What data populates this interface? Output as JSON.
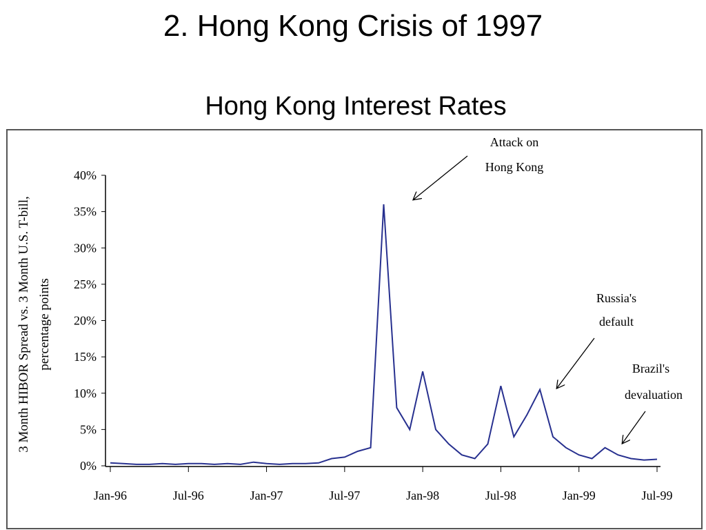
{
  "slide_title": "2. Hong Kong Crisis of 1997",
  "chart_data": {
    "type": "line",
    "title": "Hong Kong Interest Rates",
    "ylabel": [
      "3 Month HIBOR Spread vs. 3 Month U.S. T-bill,",
      "percentage points"
    ],
    "x": [
      "1996-01",
      "1996-02",
      "1996-03",
      "1996-04",
      "1996-05",
      "1996-06",
      "1996-07",
      "1996-08",
      "1996-09",
      "1996-10",
      "1996-11",
      "1996-12",
      "1997-01",
      "1997-02",
      "1997-03",
      "1997-04",
      "1997-05",
      "1997-06",
      "1997-07",
      "1997-08",
      "1997-09",
      "1997-10",
      "1997-11",
      "1997-12",
      "1998-01",
      "1998-02",
      "1998-03",
      "1998-04",
      "1998-05",
      "1998-06",
      "1998-07",
      "1998-08",
      "1998-09",
      "1998-10",
      "1998-11",
      "1998-12",
      "1999-01",
      "1999-02",
      "1999-03",
      "1999-04",
      "1999-05",
      "1999-06",
      "1999-07"
    ],
    "values": [
      0.4,
      0.3,
      0.2,
      0.2,
      0.3,
      0.2,
      0.3,
      0.3,
      0.2,
      0.3,
      0.2,
      0.5,
      0.3,
      0.2,
      0.3,
      0.3,
      0.4,
      1.0,
      1.2,
      2.0,
      2.5,
      36,
      8,
      5,
      13,
      5,
      3,
      1.5,
      1.0,
      3,
      11,
      4,
      7,
      10.5,
      4,
      2.5,
      1.5,
      1.0,
      2.5,
      1.5,
      1.0,
      0.8,
      0.9
    ],
    "color": "#27308f",
    "xlim": [
      "1996-01",
      "1999-07"
    ],
    "xticks": [
      {
        "value": "1996-01",
        "label": "Jan-96"
      },
      {
        "value": "1996-07",
        "label": "Jul-96"
      },
      {
        "value": "1997-01",
        "label": "Jan-97"
      },
      {
        "value": "1997-07",
        "label": "Jul-97"
      },
      {
        "value": "1998-01",
        "label": "Jan-98"
      },
      {
        "value": "1998-07",
        "label": "Jul-98"
      },
      {
        "value": "1999-01",
        "label": "Jan-99"
      },
      {
        "value": "1999-07",
        "label": "Jul-99"
      }
    ],
    "ylim": [
      0,
      40
    ],
    "yticks": [
      {
        "value": 0,
        "label": "0%"
      },
      {
        "value": 5,
        "label": "5%"
      },
      {
        "value": 10,
        "label": "10%"
      },
      {
        "value": 15,
        "label": "15%"
      },
      {
        "value": 20,
        "label": "20%"
      },
      {
        "value": 25,
        "label": "25%"
      },
      {
        "value": 30,
        "label": "30%"
      },
      {
        "value": 35,
        "label": "35%"
      },
      {
        "value": 40,
        "label": "40%"
      }
    ],
    "annotations": [
      [
        "Attack on",
        "Hong Kong"
      ],
      [
        "Russia's",
        "default"
      ],
      [
        "Brazil's",
        "devaluation"
      ]
    ]
  }
}
